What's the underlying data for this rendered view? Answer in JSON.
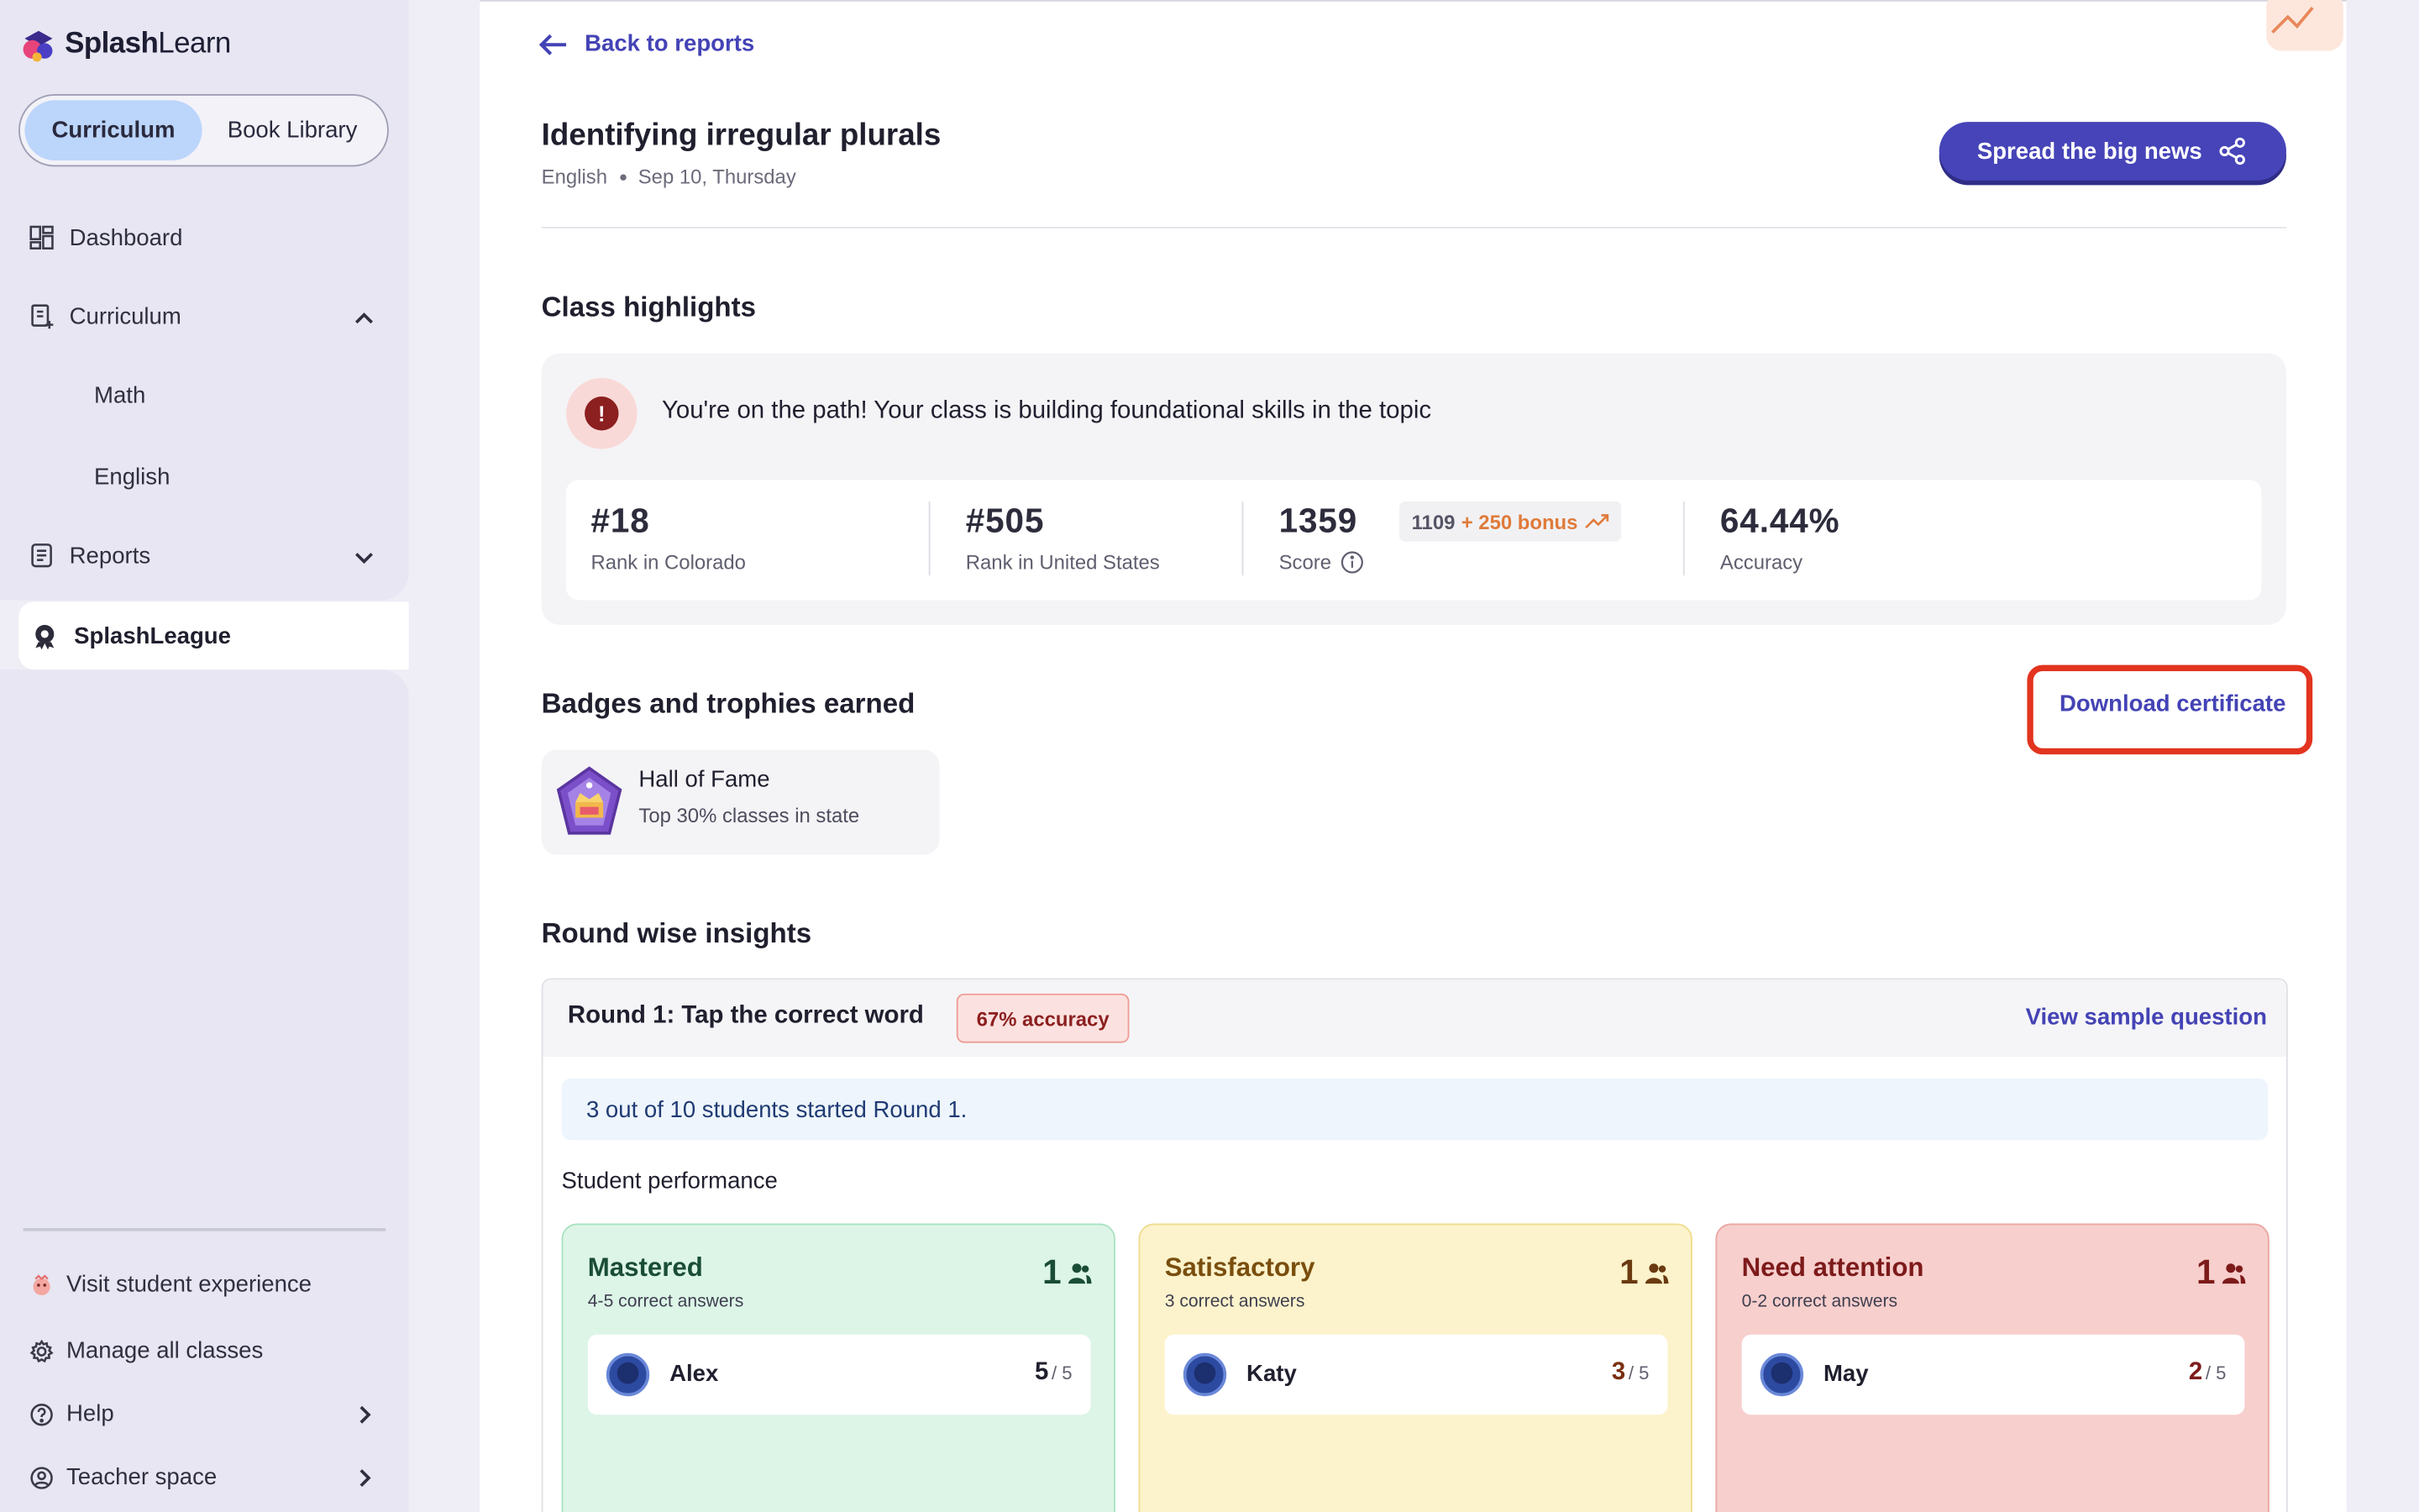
{
  "brand": {
    "name_bold": "Splash",
    "name_thin": "Learn"
  },
  "sidebar": {
    "tabs": {
      "active": "Curriculum",
      "other": "Book Library"
    },
    "nav": {
      "dashboard": "Dashboard",
      "curriculum": "Curriculum",
      "math": "Math",
      "english": "English",
      "reports": "Reports",
      "splashleague": "SplashLeague"
    },
    "footer": {
      "visit": "Visit student experience",
      "manage": "Manage all classes",
      "help": "Help",
      "teacher": "Teacher space"
    }
  },
  "header": {
    "back": "Back to reports",
    "title": "Identifying irregular plurals",
    "subject": "English",
    "date": "Sep 10, Thursday",
    "spread_button": "Spread the big news"
  },
  "highlights": {
    "section_title": "Class highlights",
    "alert": "You're on the path! Your class is building foundational skills in the topic",
    "stats": {
      "rank_state": {
        "value": "#18",
        "label": "Rank in Colorado"
      },
      "rank_country": {
        "value": "#505",
        "label": "Rank in United States"
      },
      "score": {
        "value": "1359",
        "label": "Score",
        "base": "1109",
        "bonus": "+ 250 bonus"
      },
      "accuracy": {
        "value": "64.44%",
        "label": "Accuracy"
      }
    }
  },
  "badges": {
    "section_title": "Badges and trophies earned",
    "download": "Download certificate",
    "items": [
      {
        "name": "Hall of Fame",
        "desc": "Top 30% classes in state"
      }
    ]
  },
  "rounds": {
    "section_title": "Round wise insights",
    "round1": {
      "title": "Round 1: Tap the correct word",
      "accuracy_chip": "67% accuracy",
      "view_sample": "View sample question",
      "info": "3 out of 10 students started Round 1.",
      "perf_label": "Student performance",
      "groups": [
        {
          "title": "Mastered",
          "sub": "4-5 correct answers",
          "count": "1",
          "student": "Alex",
          "score": "5",
          "out_of": "/ 5"
        },
        {
          "title": "Satisfactory",
          "sub": "3 correct answers",
          "count": "1",
          "student": "Katy",
          "score": "3",
          "out_of": "/ 5"
        },
        {
          "title": "Need attention",
          "sub": "0-2 correct answers",
          "count": "1",
          "student": "May",
          "score": "2",
          "out_of": "/ 5"
        }
      ]
    }
  },
  "colors": {
    "accent": "#4644b8",
    "highlight_frame": "#e2341f",
    "mastered_bg": "#dcf5e7",
    "satisfactory_bg": "#fcf3cc",
    "attention_bg": "#f7cfcd"
  }
}
